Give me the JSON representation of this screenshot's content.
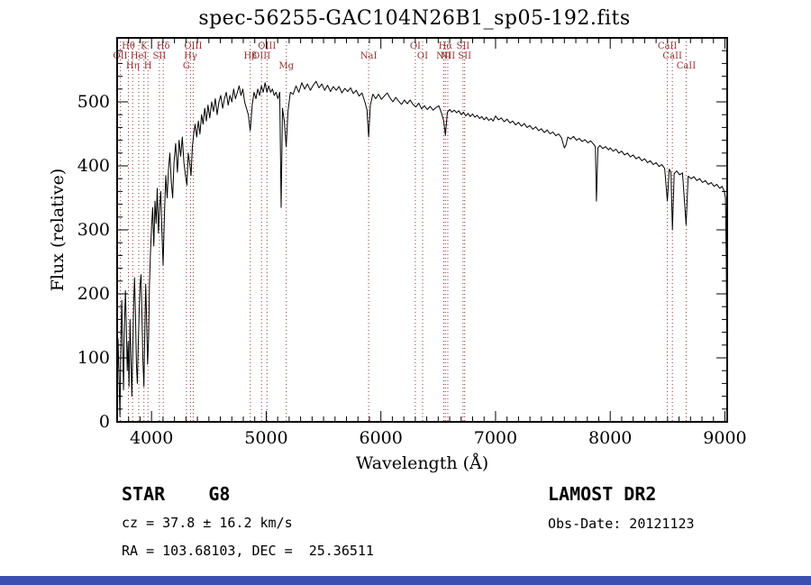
{
  "window": {
    "bottom_bar_color": "#3a4fb0"
  },
  "annotations": {
    "class_label": "STAR    G8",
    "survey": "LAMOST DR2",
    "cz": "cz = 37.8 ± 16.2 km/s",
    "obs_date": "Obs-Date: 20121123",
    "coords": "RA = 103.68103, DEC =  25.36511"
  },
  "chart_data": {
    "type": "line",
    "title": "spec-56255-GAC104N26B1_sp05-192.fits",
    "xlabel": "Wavelength (Å)",
    "ylabel": "Flux (relative)",
    "xlim": [
      3700,
      9020
    ],
    "ylim": [
      0,
      600
    ],
    "x_major_ticks": [
      4000,
      5000,
      6000,
      7000,
      8000,
      9000
    ],
    "x_minor_step": 100,
    "y_major_ticks": [
      0,
      100,
      200,
      300,
      400,
      500
    ],
    "y_minor_step": 20,
    "line_color": "#000000",
    "marker_color": "#8f3232",
    "spectral_lines": [
      {
        "w": 3727.1,
        "label": "OII",
        "row": 2
      },
      {
        "w": 3798.0,
        "label": "Hθ",
        "row": 1
      },
      {
        "w": 3835.4,
        "label": "Hη",
        "row": 3
      },
      {
        "w": 3889.0,
        "label": "HeI",
        "row": 2
      },
      {
        "w": 3933.7,
        "label": "K",
        "row": 1
      },
      {
        "w": 3968.5,
        "label": "H",
        "row": 3
      },
      {
        "w": 4068.6,
        "label": "SII",
        "row": 2
      },
      {
        "w": 4101.7,
        "label": "Hδ",
        "row": 1
      },
      {
        "w": 4304.4,
        "label": "G",
        "row": 3
      },
      {
        "w": 4340.5,
        "label": "Hγ",
        "row": 2
      },
      {
        "w": 4363.2,
        "label": "OIII",
        "row": 1
      },
      {
        "w": 4861.3,
        "label": "Hβ",
        "row": 2
      },
      {
        "w": 4958.9,
        "label": "OIII",
        "row": 2
      },
      {
        "w": 5006.8,
        "label": "OIII",
        "row": 1
      },
      {
        "w": 5175.3,
        "label": "Mg",
        "row": 3
      },
      {
        "w": 5893.0,
        "label": "NaI",
        "row": 2
      },
      {
        "w": 6300.3,
        "label": "OI",
        "row": 1
      },
      {
        "w": 6363.8,
        "label": "OI",
        "row": 2
      },
      {
        "w": 6548.1,
        "label": "NII",
        "row": 2
      },
      {
        "w": 6562.8,
        "label": "Hα",
        "row": 1
      },
      {
        "w": 6583.5,
        "label": "NII",
        "row": 2
      },
      {
        "w": 6716.4,
        "label": "SII",
        "row": 1
      },
      {
        "w": 6730.8,
        "label": "SII",
        "row": 2
      },
      {
        "w": 8498.0,
        "label": "CaII",
        "row": 1
      },
      {
        "w": 8542.1,
        "label": "CaII",
        "row": 2
      },
      {
        "w": 8662.1,
        "label": "CaII",
        "row": 3
      }
    ],
    "points": [
      [
        3700,
        25
      ],
      [
        3708,
        130
      ],
      [
        3716,
        75
      ],
      [
        3724,
        8
      ],
      [
        3732,
        115
      ],
      [
        3740,
        190
      ],
      [
        3748,
        120
      ],
      [
        3756,
        50
      ],
      [
        3764,
        150
      ],
      [
        3772,
        205
      ],
      [
        3780,
        150
      ],
      [
        3788,
        80
      ],
      [
        3796,
        125
      ],
      [
        3804,
        55
      ],
      [
        3812,
        160
      ],
      [
        3820,
        100
      ],
      [
        3828,
        40
      ],
      [
        3836,
        105
      ],
      [
        3844,
        185
      ],
      [
        3852,
        225
      ],
      [
        3860,
        165
      ],
      [
        3868,
        90
      ],
      [
        3876,
        60
      ],
      [
        3884,
        120
      ],
      [
        3892,
        170
      ],
      [
        3900,
        215
      ],
      [
        3908,
        230
      ],
      [
        3916,
        170
      ],
      [
        3924,
        100
      ],
      [
        3933,
        55
      ],
      [
        3941,
        140
      ],
      [
        3949,
        215
      ],
      [
        3957,
        160
      ],
      [
        3966,
        90
      ],
      [
        3974,
        130
      ],
      [
        3982,
        215
      ],
      [
        3991,
        265
      ],
      [
        4000,
        305
      ],
      [
        4010,
        335
      ],
      [
        4020,
        275
      ],
      [
        4030,
        345
      ],
      [
        4040,
        310
      ],
      [
        4050,
        365
      ],
      [
        4060,
        295
      ],
      [
        4070,
        335
      ],
      [
        4080,
        360
      ],
      [
        4090,
        300
      ],
      [
        4101,
        245
      ],
      [
        4112,
        320
      ],
      [
        4124,
        385
      ],
      [
        4136,
        350
      ],
      [
        4148,
        395
      ],
      [
        4160,
        420
      ],
      [
        4172,
        375
      ],
      [
        4184,
        350
      ],
      [
        4196,
        405
      ],
      [
        4210,
        435
      ],
      [
        4226,
        390
      ],
      [
        4240,
        440
      ],
      [
        4254,
        415
      ],
      [
        4268,
        445
      ],
      [
        4282,
        405
      ],
      [
        4296,
        385
      ],
      [
        4308,
        370
      ],
      [
        4320,
        420
      ],
      [
        4332,
        405
      ],
      [
        4344,
        385
      ],
      [
        4356,
        430
      ],
      [
        4368,
        450
      ],
      [
        4380,
        465
      ],
      [
        4394,
        445
      ],
      [
        4408,
        470
      ],
      [
        4422,
        450
      ],
      [
        4436,
        480
      ],
      [
        4450,
        465
      ],
      [
        4464,
        490
      ],
      [
        4478,
        470
      ],
      [
        4492,
        495
      ],
      [
        4508,
        475
      ],
      [
        4524,
        500
      ],
      [
        4540,
        485
      ],
      [
        4556,
        505
      ],
      [
        4572,
        480
      ],
      [
        4588,
        500
      ],
      [
        4604,
        510
      ],
      [
        4620,
        490
      ],
      [
        4636,
        505
      ],
      [
        4652,
        515
      ],
      [
        4668,
        495
      ],
      [
        4684,
        510
      ],
      [
        4700,
        500
      ],
      [
        4716,
        520
      ],
      [
        4732,
        505
      ],
      [
        4748,
        515
      ],
      [
        4764,
        525
      ],
      [
        4780,
        510
      ],
      [
        4796,
        520
      ],
      [
        4812,
        500
      ],
      [
        4828,
        490
      ],
      [
        4844,
        480
      ],
      [
        4861,
        455
      ],
      [
        4878,
        495
      ],
      [
        4894,
        515
      ],
      [
        4910,
        505
      ],
      [
        4926,
        520
      ],
      [
        4942,
        510
      ],
      [
        4958,
        525
      ],
      [
        4974,
        515
      ],
      [
        4990,
        530
      ],
      [
        5006,
        515
      ],
      [
        5022,
        525
      ],
      [
        5038,
        515
      ],
      [
        5054,
        520
      ],
      [
        5070,
        510
      ],
      [
        5086,
        515
      ],
      [
        5102,
        505
      ],
      [
        5118,
        515
      ],
      [
        5130,
        335
      ],
      [
        5142,
        490
      ],
      [
        5158,
        470
      ],
      [
        5174,
        430
      ],
      [
        5190,
        485
      ],
      [
        5210,
        515
      ],
      [
        5235,
        512
      ],
      [
        5260,
        525
      ],
      [
        5285,
        515
      ],
      [
        5310,
        530
      ],
      [
        5335,
        520
      ],
      [
        5360,
        528
      ],
      [
        5385,
        518
      ],
      [
        5410,
        526
      ],
      [
        5435,
        532
      ],
      [
        5460,
        522
      ],
      [
        5485,
        528
      ],
      [
        5510,
        518
      ],
      [
        5535,
        526
      ],
      [
        5560,
        516
      ],
      [
        5585,
        524
      ],
      [
        5610,
        518
      ],
      [
        5635,
        524
      ],
      [
        5660,
        514
      ],
      [
        5685,
        521
      ],
      [
        5710,
        516
      ],
      [
        5735,
        522
      ],
      [
        5760,
        513
      ],
      [
        5785,
        518
      ],
      [
        5810,
        509
      ],
      [
        5835,
        514
      ],
      [
        5860,
        500
      ],
      [
        5878,
        488
      ],
      [
        5893,
        445
      ],
      [
        5908,
        495
      ],
      [
        5930,
        512
      ],
      [
        5955,
        505
      ],
      [
        5980,
        512
      ],
      [
        6005,
        504
      ],
      [
        6030,
        509
      ],
      [
        6055,
        514
      ],
      [
        6080,
        506
      ],
      [
        6105,
        500
      ],
      [
        6130,
        507
      ],
      [
        6155,
        501
      ],
      [
        6180,
        496
      ],
      [
        6205,
        503
      ],
      [
        6230,
        497
      ],
      [
        6255,
        503
      ],
      [
        6280,
        496
      ],
      [
        6305,
        492
      ],
      [
        6330,
        498
      ],
      [
        6355,
        489
      ],
      [
        6380,
        494
      ],
      [
        6405,
        488
      ],
      [
        6430,
        493
      ],
      [
        6455,
        487
      ],
      [
        6480,
        491
      ],
      [
        6505,
        494
      ],
      [
        6530,
        482
      ],
      [
        6548,
        470
      ],
      [
        6563,
        448
      ],
      [
        6580,
        484
      ],
      [
        6600,
        488
      ],
      [
        6620,
        484
      ],
      [
        6640,
        487
      ],
      [
        6660,
        483
      ],
      [
        6680,
        486
      ],
      [
        6700,
        480
      ],
      [
        6720,
        484
      ],
      [
        6740,
        478
      ],
      [
        6760,
        482
      ],
      [
        6780,
        477
      ],
      [
        6800,
        481
      ],
      [
        6820,
        476
      ],
      [
        6840,
        479
      ],
      [
        6860,
        474
      ],
      [
        6880,
        477
      ],
      [
        6900,
        472
      ],
      [
        6920,
        476
      ],
      [
        6940,
        471
      ],
      [
        6960,
        474
      ],
      [
        6980,
        470
      ],
      [
        7000,
        478
      ],
      [
        7025,
        472
      ],
      [
        7050,
        475
      ],
      [
        7075,
        469
      ],
      [
        7100,
        473
      ],
      [
        7125,
        467
      ],
      [
        7150,
        470
      ],
      [
        7175,
        464
      ],
      [
        7200,
        468
      ],
      [
        7225,
        462
      ],
      [
        7250,
        466
      ],
      [
        7275,
        460
      ],
      [
        7300,
        463
      ],
      [
        7325,
        457
      ],
      [
        7350,
        461
      ],
      [
        7375,
        455
      ],
      [
        7400,
        458
      ],
      [
        7425,
        452
      ],
      [
        7450,
        456
      ],
      [
        7475,
        450
      ],
      [
        7500,
        453
      ],
      [
        7525,
        447
      ],
      [
        7550,
        450
      ],
      [
        7575,
        444
      ],
      [
        7600,
        428
      ],
      [
        7615,
        433
      ],
      [
        7630,
        445
      ],
      [
        7655,
        442
      ],
      [
        7680,
        446
      ],
      [
        7705,
        440
      ],
      [
        7730,
        443
      ],
      [
        7755,
        438
      ],
      [
        7780,
        441
      ],
      [
        7805,
        436
      ],
      [
        7830,
        439
      ],
      [
        7855,
        434
      ],
      [
        7870,
        430
      ],
      [
        7880,
        345
      ],
      [
        7892,
        428
      ],
      [
        7910,
        432
      ],
      [
        7935,
        427
      ],
      [
        7960,
        430
      ],
      [
        7985,
        425
      ],
      [
        8000,
        428
      ],
      [
        8025,
        423
      ],
      [
        8050,
        426
      ],
      [
        8075,
        420
      ],
      [
        8100,
        423
      ],
      [
        8125,
        417
      ],
      [
        8150,
        420
      ],
      [
        8175,
        414
      ],
      [
        8200,
        417
      ],
      [
        8225,
        411
      ],
      [
        8250,
        414
      ],
      [
        8275,
        408
      ],
      [
        8300,
        411
      ],
      [
        8325,
        405
      ],
      [
        8350,
        408
      ],
      [
        8375,
        402
      ],
      [
        8400,
        405
      ],
      [
        8425,
        399
      ],
      [
        8450,
        402
      ],
      [
        8475,
        396
      ],
      [
        8498,
        345
      ],
      [
        8515,
        395
      ],
      [
        8530,
        390
      ],
      [
        8542,
        300
      ],
      [
        8558,
        388
      ],
      [
        8580,
        392
      ],
      [
        8605,
        386
      ],
      [
        8630,
        389
      ],
      [
        8662,
        308
      ],
      [
        8680,
        384
      ],
      [
        8705,
        380
      ],
      [
        8730,
        383
      ],
      [
        8755,
        377
      ],
      [
        8780,
        380
      ],
      [
        8805,
        374
      ],
      [
        8830,
        377
      ],
      [
        8855,
        371
      ],
      [
        8880,
        374
      ],
      [
        8905,
        368
      ],
      [
        8930,
        371
      ],
      [
        8955,
        365
      ],
      [
        8975,
        368
      ],
      [
        8995,
        360
      ],
      [
        9005,
        350
      ],
      [
        9012,
        250
      ],
      [
        9018,
        70
      ]
    ]
  }
}
